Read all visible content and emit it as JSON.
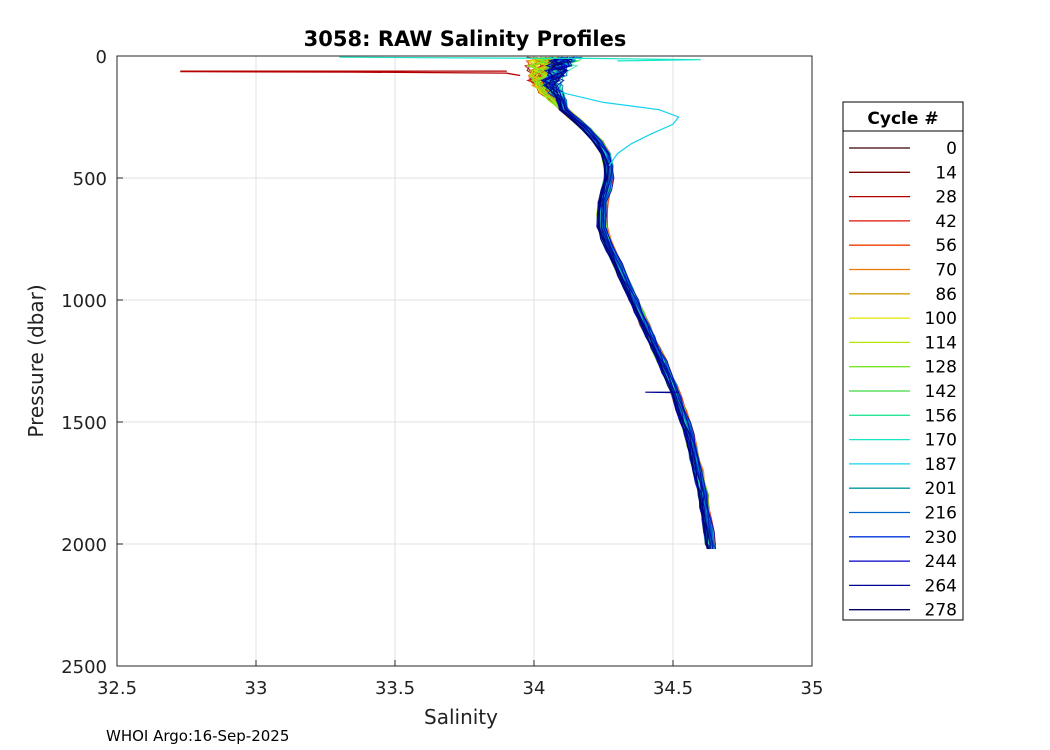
{
  "chart_data": {
    "type": "line",
    "title": "3058: RAW Salinity Profiles",
    "xlabel": "Salinity",
    "ylabel": "Pressure (dbar)",
    "xlim": [
      32.5,
      35
    ],
    "ylim": [
      0,
      2500
    ],
    "y_reversed": true,
    "grid": true,
    "legend_placement": "right",
    "legend_title": "Cycle #",
    "x_ticks": [
      "32.5",
      "33",
      "33.5",
      "34",
      "34.5",
      "35"
    ],
    "y_ticks": [
      "0",
      "500",
      "1000",
      "1500",
      "2000",
      "2500"
    ],
    "footer": "WHOI Argo:16-Sep-2025",
    "legend": [
      {
        "name": "0",
        "color": "#3a0000"
      },
      {
        "name": "14",
        "color": "#7a0000"
      },
      {
        "name": "28",
        "color": "#b40000"
      },
      {
        "name": "42",
        "color": "#dc1000"
      },
      {
        "name": "56",
        "color": "#f03c00"
      },
      {
        "name": "70",
        "color": "#f07800"
      },
      {
        "name": "86",
        "color": "#d2a000"
      },
      {
        "name": "100",
        "color": "#e6e600"
      },
      {
        "name": "114",
        "color": "#b4e600"
      },
      {
        "name": "128",
        "color": "#78e628"
      },
      {
        "name": "142",
        "color": "#3cdc3c"
      },
      {
        "name": "156",
        "color": "#28e696"
      },
      {
        "name": "170",
        "color": "#14e6c8"
      },
      {
        "name": "187",
        "color": "#14d2f0"
      },
      {
        "name": "201",
        "color": "#0096a0"
      },
      {
        "name": "216",
        "color": "#0064c8"
      },
      {
        "name": "230",
        "color": "#0032dc"
      },
      {
        "name": "244",
        "color": "#0000c8"
      },
      {
        "name": "264",
        "color": "#000096"
      },
      {
        "name": "278",
        "color": "#000064"
      }
    ],
    "base_profile": {
      "pressure": [
        5,
        20,
        40,
        60,
        80,
        100,
        120,
        150,
        180,
        220,
        260,
        300,
        350,
        400,
        450,
        500,
        550,
        600,
        650,
        700,
        750,
        800,
        850,
        900,
        950,
        1000,
        1050,
        1100,
        1150,
        1200,
        1250,
        1300,
        1350,
        1400,
        1450,
        1500,
        1550,
        1600,
        1650,
        1700,
        1750,
        1800,
        1850,
        1900,
        1950,
        2000,
        2020
      ],
      "salinity": [
        34.1,
        34.09,
        34.08,
        34.07,
        34.06,
        34.05,
        34.05,
        34.06,
        34.08,
        34.11,
        34.15,
        34.19,
        34.23,
        34.26,
        34.27,
        34.27,
        34.26,
        34.25,
        34.245,
        34.245,
        34.26,
        34.28,
        34.3,
        34.32,
        34.34,
        34.36,
        34.38,
        34.4,
        34.42,
        34.44,
        34.46,
        34.48,
        34.5,
        34.515,
        34.53,
        34.545,
        34.56,
        34.57,
        34.58,
        34.59,
        34.6,
        34.61,
        34.615,
        34.62,
        34.63,
        34.635,
        34.64
      ]
    },
    "spike_profile": {
      "name": "28",
      "pressure": [
        60,
        62,
        62,
        64,
        66,
        70,
        80
      ],
      "salinity": [
        33.9,
        33.9,
        32.73,
        32.73,
        33.35,
        33.9,
        33.95
      ]
    },
    "anomaly_profile": {
      "name": "187",
      "pressure": [
        150,
        190,
        220,
        250,
        280,
        320,
        360,
        400,
        450
      ],
      "salinity": [
        34.1,
        34.25,
        34.45,
        34.52,
        34.5,
        34.42,
        34.35,
        34.3,
        34.27
      ]
    },
    "surface_profile": {
      "name": "170",
      "pressure": [
        5,
        8,
        10,
        15,
        20
      ],
      "salinity": [
        33.3,
        33.8,
        34.2,
        34.6,
        34.3
      ]
    },
    "small_spike": {
      "name": "264",
      "pressure": [
        1375,
        1378,
        1378,
        1380
      ],
      "salinity": [
        34.52,
        34.52,
        34.4,
        34.5
      ]
    }
  }
}
